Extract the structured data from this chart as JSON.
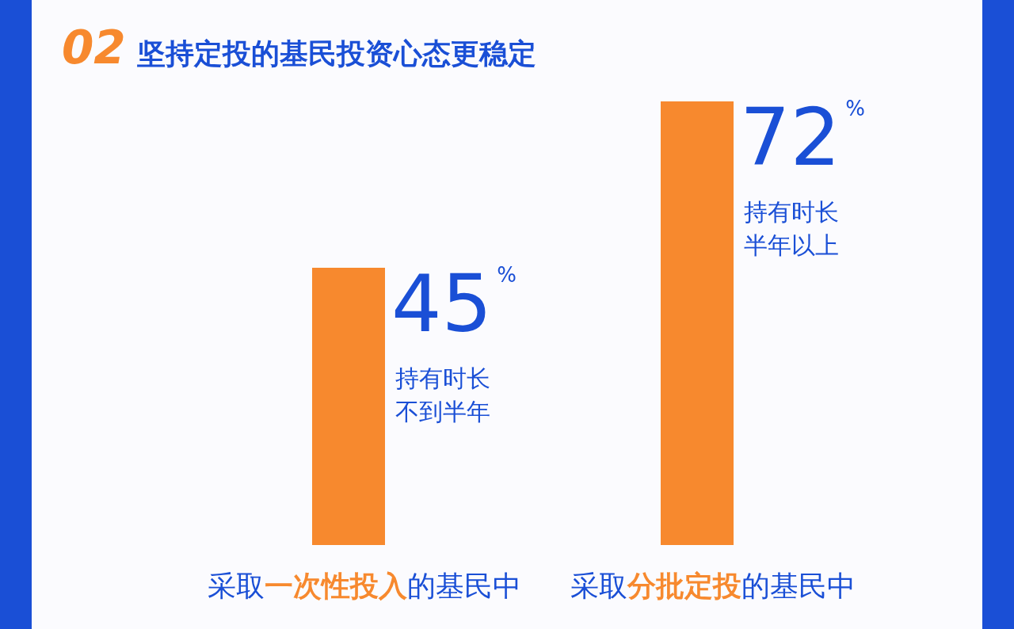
{
  "chart_data": {
    "type": "bar",
    "title": "02 坚持定投的基民投资心态更稳定",
    "categories": [
      "采取**一次性投入**的基民中",
      "采取**分批定投**的基民中"
    ],
    "values": [
      45,
      72
    ],
    "color": "#f7892e",
    "value_labels": [
      "45$^{%}$",
      "72$^{%}$"
    ],
    "annotations": [
      "持有时长不到半年",
      "持有时长半年以上"
    ]
  }
}
